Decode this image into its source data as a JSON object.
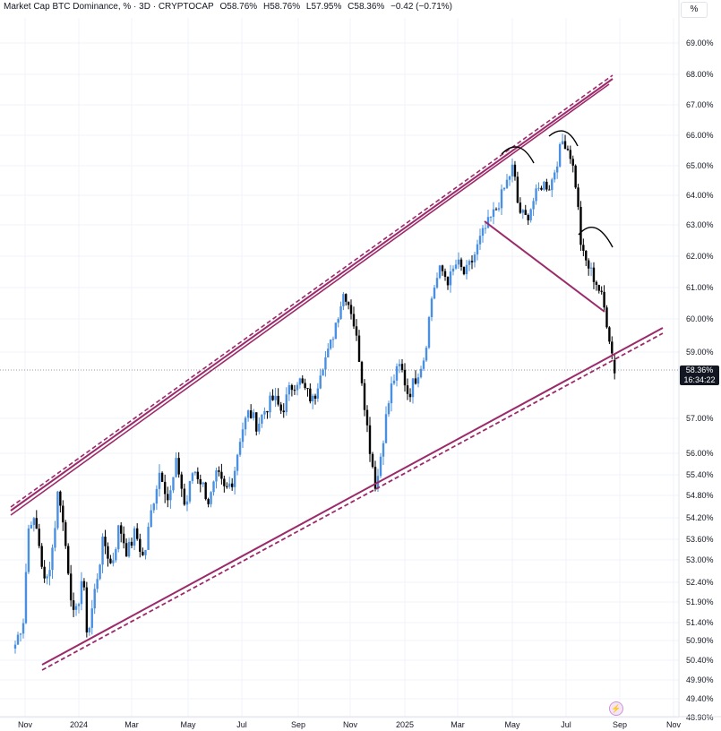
{
  "header": {
    "symbol": "Market Cap BTC Dominance, % · 3D · CRYPTOCAP",
    "open": "O58.76%",
    "high": "H58.76%",
    "low": "L57.95%",
    "close": "C58.36%",
    "change": "−0.42 (−0.71%)"
  },
  "scale_button": "%",
  "last_price": {
    "value": "58.36%",
    "countdown": "16:34:22"
  },
  "colors": {
    "up": "#4a90e2",
    "down": "#000000",
    "channel": "#9c2a6a",
    "grid": "#f0f3fa",
    "marker": "#000000"
  },
  "chart_data": {
    "type": "candlestick",
    "y_axis_ticks": [
      "69.00%",
      "68.00%",
      "67.00%",
      "66.00%",
      "65.00%",
      "64.00%",
      "63.00%",
      "62.00%",
      "61.00%",
      "60.00%",
      "59.00%",
      "57.00%",
      "56.00%",
      "55.40%",
      "54.80%",
      "54.20%",
      "53.60%",
      "53.00%",
      "52.40%",
      "51.90%",
      "51.40%",
      "50.90%",
      "50.40%",
      "49.90%",
      "49.40%",
      "48.90%"
    ],
    "x_axis_ticks": [
      "Nov",
      "2024",
      "Mar",
      "May",
      "Jul",
      "Sep",
      "Nov",
      "2025",
      "Mar",
      "May",
      "Jul",
      "Sep",
      "Nov"
    ],
    "ylim": [
      48.9,
      69.5
    ],
    "series_path": [
      [
        "2023-10-21",
        50.8
      ],
      [
        "2023-10-30",
        51.5
      ],
      [
        "2023-11-06",
        54.3
      ],
      [
        "2023-11-15",
        53.8
      ],
      [
        "2023-11-24",
        52.2
      ],
      [
        "2023-12-03",
        53.5
      ],
      [
        "2023-12-09",
        55.1
      ],
      [
        "2023-12-18",
        53.2
      ],
      [
        "2023-12-27",
        51.3
      ],
      [
        "2024-01-05",
        52.6
      ],
      [
        "2024-01-11",
        51.0
      ],
      [
        "2024-01-20",
        52.3
      ],
      [
        "2024-01-29",
        53.6
      ],
      [
        "2024-02-07",
        52.8
      ],
      [
        "2024-02-16",
        54.0
      ],
      [
        "2024-02-25",
        53.2
      ],
      [
        "2024-03-05",
        53.8
      ],
      [
        "2024-03-14",
        53.0
      ],
      [
        "2024-03-23",
        54.5
      ],
      [
        "2024-04-01",
        55.6
      ],
      [
        "2024-04-10",
        54.6
      ],
      [
        "2024-04-19",
        55.8
      ],
      [
        "2024-04-28",
        54.4
      ],
      [
        "2024-05-07",
        55.6
      ],
      [
        "2024-05-16",
        55.2
      ],
      [
        "2024-05-25",
        54.6
      ],
      [
        "2024-06-03",
        55.4
      ],
      [
        "2024-06-12",
        54.9
      ],
      [
        "2024-06-21",
        55.3
      ],
      [
        "2024-06-30",
        56.6
      ],
      [
        "2024-07-09",
        57.2
      ],
      [
        "2024-07-18",
        56.8
      ],
      [
        "2024-07-27",
        57.3
      ],
      [
        "2024-08-05",
        57.6
      ],
      [
        "2024-08-14",
        57.2
      ],
      [
        "2024-08-23",
        57.9
      ],
      [
        "2024-09-01",
        58.2
      ],
      [
        "2024-09-10",
        57.8
      ],
      [
        "2024-09-19",
        57.5
      ],
      [
        "2024-09-28",
        58.6
      ],
      [
        "2024-10-07",
        59.0
      ],
      [
        "2024-10-16",
        60.0
      ],
      [
        "2024-10-25",
        60.9
      ],
      [
        "2024-11-03",
        60.2
      ],
      [
        "2024-11-12",
        58.7
      ],
      [
        "2024-11-21",
        56.5
      ],
      [
        "2024-11-30",
        55.0
      ],
      [
        "2024-12-09",
        56.7
      ],
      [
        "2024-12-18",
        58.1
      ],
      [
        "2024-12-27",
        58.6
      ],
      [
        "2025-01-05",
        57.7
      ],
      [
        "2025-01-14",
        58.3
      ],
      [
        "2025-01-23",
        58.9
      ],
      [
        "2025-02-01",
        60.9
      ],
      [
        "2025-02-10",
        61.6
      ],
      [
        "2025-02-19",
        61.2
      ],
      [
        "2025-02-28",
        61.8
      ],
      [
        "2025-03-09",
        61.4
      ],
      [
        "2025-03-18",
        61.9
      ],
      [
        "2025-03-27",
        62.6
      ],
      [
        "2025-04-05",
        63.1
      ],
      [
        "2025-04-14",
        63.6
      ],
      [
        "2025-04-23",
        64.3
      ],
      [
        "2025-05-02",
        65.0
      ],
      [
        "2025-05-08",
        63.5
      ],
      [
        "2025-05-17",
        63.2
      ],
      [
        "2025-05-26",
        63.9
      ],
      [
        "2025-06-04",
        64.4
      ],
      [
        "2025-06-13",
        64.3
      ],
      [
        "2025-06-22",
        65.3
      ],
      [
        "2025-06-28",
        65.9
      ],
      [
        "2025-07-07",
        65.3
      ],
      [
        "2025-07-13",
        64.2
      ],
      [
        "2025-07-19",
        62.1
      ],
      [
        "2025-07-28",
        61.6
      ],
      [
        "2025-08-06",
        61.1
      ],
      [
        "2025-08-12",
        60.6
      ],
      [
        "2025-08-18",
        59.8
      ],
      [
        "2025-08-24",
        58.8
      ],
      [
        "2025-08-27",
        58.36
      ]
    ],
    "annotations": [
      "upper channel line",
      "lower channel line",
      "neckline",
      "left shoulder arc",
      "head arc",
      "right shoulder arc"
    ]
  }
}
